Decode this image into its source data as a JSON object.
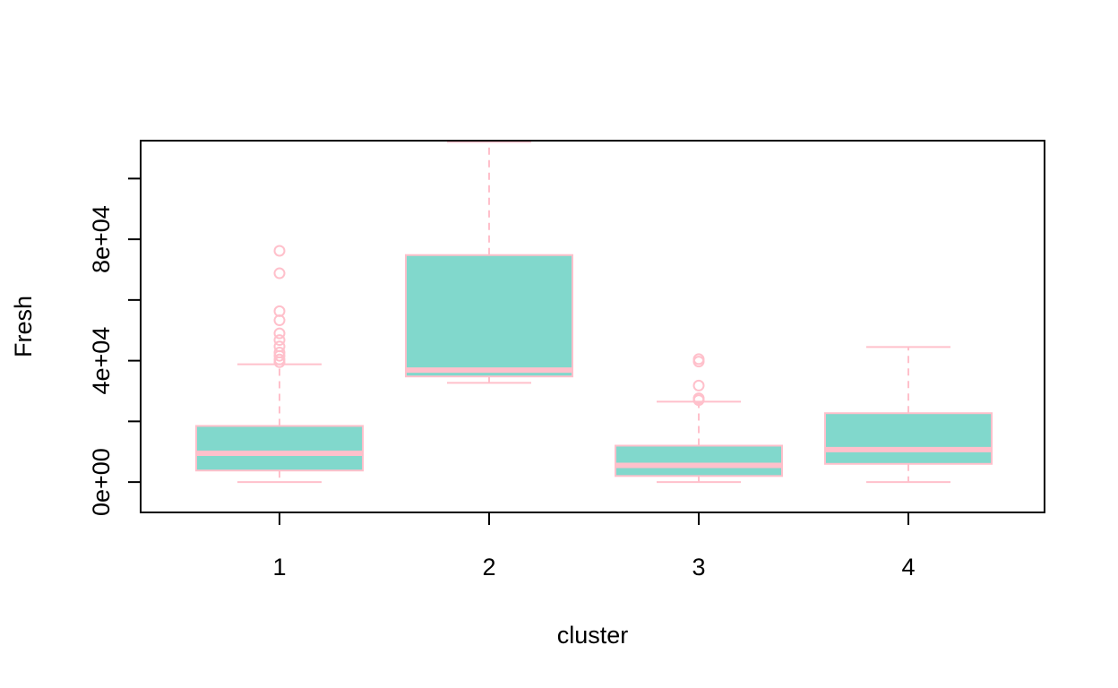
{
  "chart_data": {
    "type": "boxplot",
    "title": "",
    "xlabel": "cluster",
    "ylabel": "Fresh",
    "categories": [
      "1",
      "2",
      "3",
      "4"
    ],
    "y_ticks": [
      0,
      20000,
      40000,
      60000,
      80000,
      100000
    ],
    "y_tick_labels": [
      "0e+00",
      "",
      "4e+04",
      "",
      "8e+04",
      ""
    ],
    "ylim": [
      -10000,
      112500
    ],
    "grid": false,
    "boxes": [
      {
        "category": "1",
        "whisker_low": 3,
        "q1": 3800,
        "median": 9500,
        "q3": 18500,
        "whisker_high": 38800,
        "outliers": [
          76200,
          68800,
          56300,
          53300,
          49000,
          46800,
          44700,
          42700,
          41600,
          40400,
          39500
        ]
      },
      {
        "category": "2",
        "whisker_low": 32700,
        "q1": 34800,
        "median": 36900,
        "q3": 74800,
        "whisker_high": 112100,
        "outliers": []
      },
      {
        "category": "3",
        "whisker_low": 3,
        "q1": 2000,
        "median": 5500,
        "q3": 12000,
        "whisker_high": 26500,
        "outliers": [
          40500,
          39700,
          31800,
          27600,
          27000
        ]
      },
      {
        "category": "4",
        "whisker_low": 3,
        "q1": 6000,
        "median": 10700,
        "q3": 22700,
        "whisker_high": 44500,
        "outliers": []
      }
    ],
    "colors": {
      "box_fill": "#81d8cc",
      "box_border": "#ffc0cb",
      "axis": "#000000"
    }
  }
}
